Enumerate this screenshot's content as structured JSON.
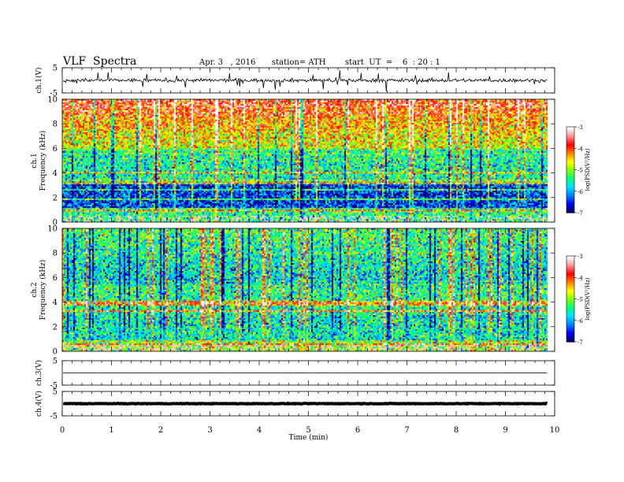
{
  "header": {
    "title": "VLF  Spectra",
    "date": "Apr. 3   , 2016",
    "station": "station= ATH",
    "start": "start  UT  =    6  : 20 : 1"
  },
  "chart_data": {
    "type": "spectrogram",
    "x": {
      "label": "Time  (min)",
      "range": [
        0,
        10
      ],
      "ticks": [
        "0",
        "1",
        "2",
        "3",
        "4",
        "5",
        "6",
        "7",
        "8",
        "9",
        "10"
      ],
      "data_end": 9.85
    },
    "panels": [
      {
        "id": "ch1-waveform",
        "ylabel": "ch.1(V)",
        "yrange": [
          -5,
          5
        ],
        "ticks": [
          "5",
          "-5"
        ],
        "trace_baseline": 0
      },
      {
        "id": "ch1-spectrogram",
        "ylabel_top": "ch.1",
        "ylabel": "Frequency  (kHz)",
        "yrange": [
          0,
          10
        ],
        "ticks": [
          "0",
          "2",
          "4",
          "6",
          "8",
          "10"
        ]
      },
      {
        "id": "ch2-spectrogram",
        "ylabel_top": "ch.2",
        "ylabel": "Frequency  (kHz)",
        "yrange": [
          0,
          10
        ],
        "ticks": [
          "0",
          "2",
          "4",
          "6",
          "8",
          "10"
        ]
      },
      {
        "id": "ch3-waveform",
        "ylabel": "ch.3(V)",
        "yrange": [
          -5,
          5
        ],
        "ticks": [
          "5",
          "-5"
        ],
        "trace_baseline": 0
      },
      {
        "id": "ch4-waveform",
        "ylabel": "ch.4(V)",
        "yrange": [
          -5,
          5
        ],
        "ticks": [
          "5",
          "-5"
        ],
        "trace_baseline": 0
      }
    ],
    "colorbar": {
      "label": "log(PSD(V²/Hz)",
      "range": [
        -7,
        -3
      ],
      "ticks": [
        "-3",
        "-4",
        "-5",
        "-6",
        "-7"
      ],
      "colors": [
        "#000066",
        "#0000ee",
        "#0080ff",
        "#00e0ff",
        "#00ff80",
        "#80ff00",
        "#ffff00",
        "#ff8000",
        "#ff0000",
        "#ff9090",
        "#ffffff"
      ]
    }
  }
}
